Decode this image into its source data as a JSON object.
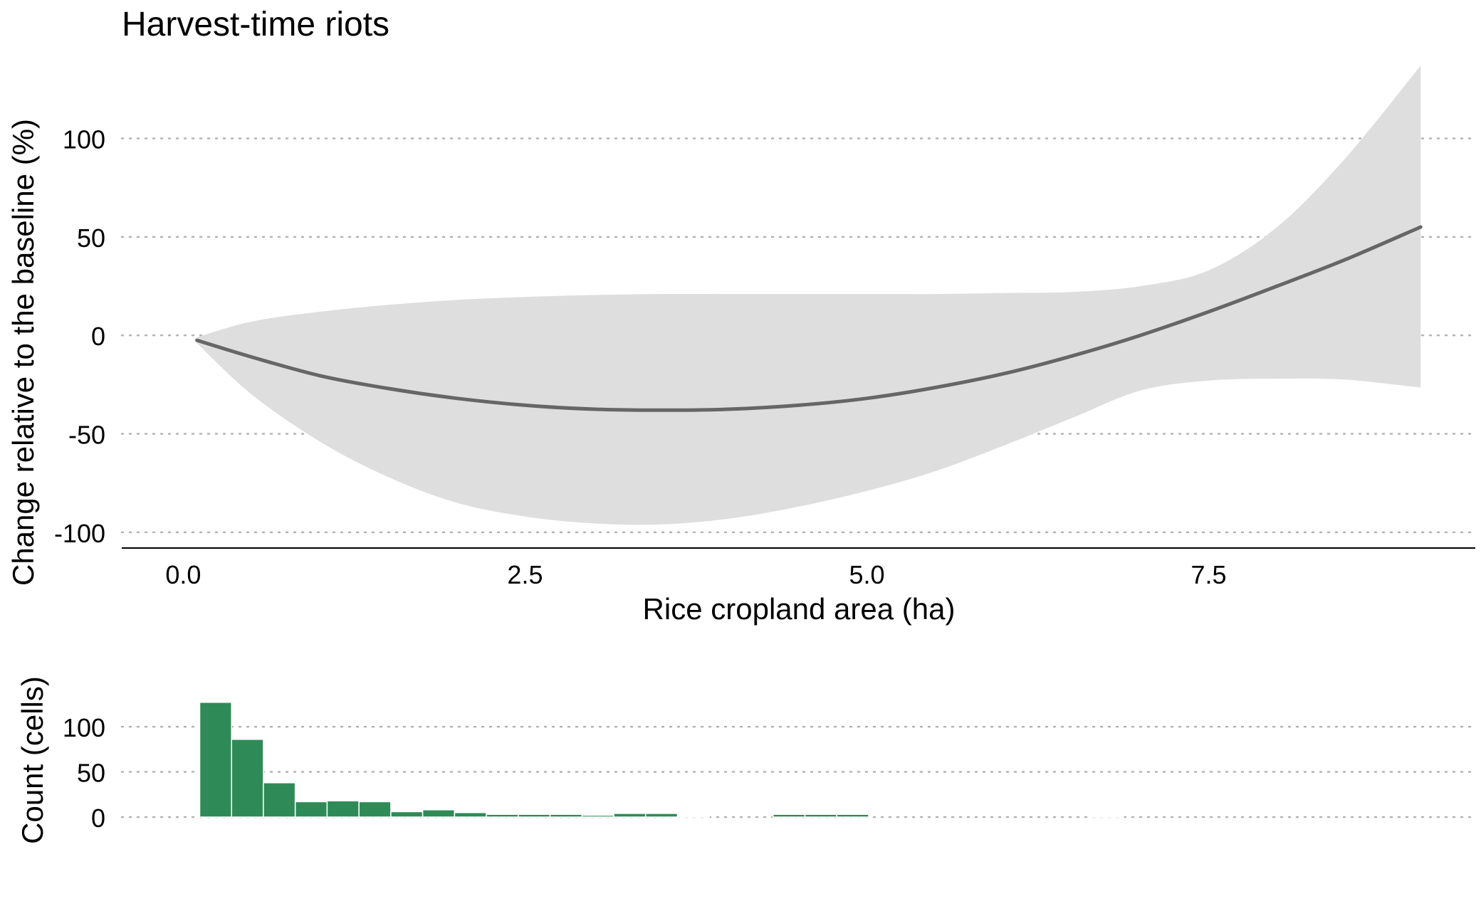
{
  "chart_data": [
    {
      "type": "line",
      "title": "Harvest-time riots",
      "xlabel": "Rice cropland area (ha)",
      "ylabel": "Change relative to the baseline (%)",
      "xlim": [
        -0.45,
        9.45
      ],
      "ylim": [
        -108,
        145
      ],
      "x_ticks": [
        0.0,
        2.5,
        5.0,
        7.5
      ],
      "x_tick_labels": [
        "0.0",
        "2.5",
        "5.0",
        "7.5"
      ],
      "y_ticks": [
        100,
        50,
        0,
        -50,
        -100
      ],
      "y_tick_labels": [
        "100",
        "50",
        "0",
        "-50",
        "-100"
      ],
      "grid": "horizontal dotted",
      "colors": {
        "line": "#666666",
        "band": "#dedede",
        "grid": "#b3b3b3"
      },
      "series": [
        {
          "x": [
            0.1,
            0.5,
            1.0,
            1.5,
            2.0,
            2.5,
            3.0,
            3.5,
            4.0,
            4.5,
            5.0,
            5.5,
            6.0,
            6.5,
            7.0,
            7.5,
            8.0,
            8.5,
            9.05
          ],
          "y": [
            -2.5,
            -11,
            -20.5,
            -27,
            -32,
            -35.5,
            -37.5,
            -38,
            -37.5,
            -35.5,
            -32,
            -26.5,
            -19.5,
            -10.5,
            0,
            12,
            25,
            38.5,
            55
          ],
          "lower": [
            -4,
            -30,
            -54,
            -72,
            -85,
            -92,
            -95.5,
            -96,
            -93,
            -87,
            -79,
            -69,
            -56,
            -42,
            -28,
            -23,
            -22,
            -22.5,
            -26.5
          ],
          "upper": [
            -1,
            7,
            12,
            15.5,
            18,
            19.5,
            20.5,
            21,
            21,
            21,
            21,
            21,
            21.5,
            22,
            25,
            33,
            55,
            90,
            137
          ]
        }
      ]
    },
    {
      "type": "bar",
      "ylabel": "Count (cells)",
      "xlim": [
        -0.45,
        9.45
      ],
      "ylim": [
        0,
        130
      ],
      "y_ticks": [
        100,
        50,
        0
      ],
      "y_tick_labels": [
        "100",
        "50",
        "0"
      ],
      "grid": "horizontal dotted",
      "colors": {
        "bar": "#2e8b57"
      },
      "bin_edges": [
        0.12,
        0.353,
        0.586,
        0.819,
        1.052,
        1.285,
        1.518,
        1.751,
        1.984,
        2.217,
        2.45,
        2.683,
        2.916,
        3.149,
        3.382,
        3.615,
        3.848,
        4.081,
        4.314,
        4.547,
        4.78,
        5.013,
        5.246,
        5.479,
        5.712,
        5.945,
        6.178,
        6.411,
        6.644,
        6.877,
        7.11,
        7.343,
        7.576,
        7.809,
        8.042,
        8.275,
        8.508,
        8.741,
        8.974,
        9.207
      ],
      "values": [
        127,
        86,
        38,
        17,
        18,
        17,
        6,
        8,
        5,
        3,
        3,
        3,
        2,
        4,
        4,
        1,
        0,
        0,
        3,
        3,
        3,
        0,
        0,
        0,
        0,
        0,
        0,
        0,
        1,
        0,
        0,
        0,
        0,
        0,
        0,
        0,
        0,
        0,
        0
      ]
    }
  ]
}
